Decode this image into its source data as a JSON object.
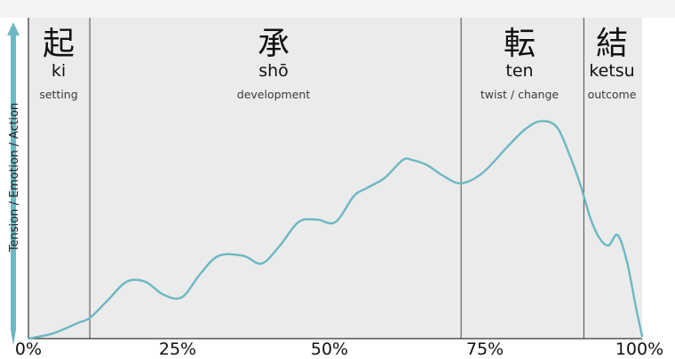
{
  "colors": {
    "curve": "#6cb8c3",
    "arrow": "#6cb8c3"
  },
  "y_axis_label": "Tension / Emotion / Action",
  "stages": [
    {
      "kanji": "起",
      "romaji": "ki",
      "english": "setting"
    },
    {
      "kanji": "承",
      "romaji": "shō",
      "english": "development"
    },
    {
      "kanji": "転",
      "romaji": "ten",
      "english": "twist / change"
    },
    {
      "kanji": "結",
      "romaji": "ketsu",
      "english": "outcome"
    }
  ],
  "x_ticks": [
    "0%",
    "25%",
    "50%",
    "75%",
    "100%"
  ],
  "chart_data": {
    "type": "line",
    "xlim": [
      0,
      100
    ],
    "ylim": [
      0,
      1
    ],
    "stage_boundaries": [
      10,
      70.5,
      90.5
    ],
    "series": [
      {
        "x": [
          0,
          4,
          8,
          10,
          13,
          16,
          19,
          22,
          25,
          28,
          31,
          35,
          38,
          41,
          44,
          47,
          50,
          53,
          55,
          58,
          61,
          62.5,
          65,
          67.5,
          70.5,
          74,
          78,
          81,
          83.5,
          86,
          88,
          90,
          91.5,
          93,
          94.5,
          96,
          97.5,
          99,
          100
        ],
        "y": [
          0,
          0.02,
          0.06,
          0.08,
          0.15,
          0.22,
          0.22,
          0.17,
          0.16,
          0.25,
          0.32,
          0.32,
          0.29,
          0.36,
          0.45,
          0.46,
          0.45,
          0.55,
          0.58,
          0.62,
          0.69,
          0.69,
          0.67,
          0.63,
          0.6,
          0.64,
          0.74,
          0.81,
          0.84,
          0.82,
          0.72,
          0.59,
          0.47,
          0.39,
          0.36,
          0.4,
          0.3,
          0.12,
          0.01
        ]
      }
    ]
  }
}
